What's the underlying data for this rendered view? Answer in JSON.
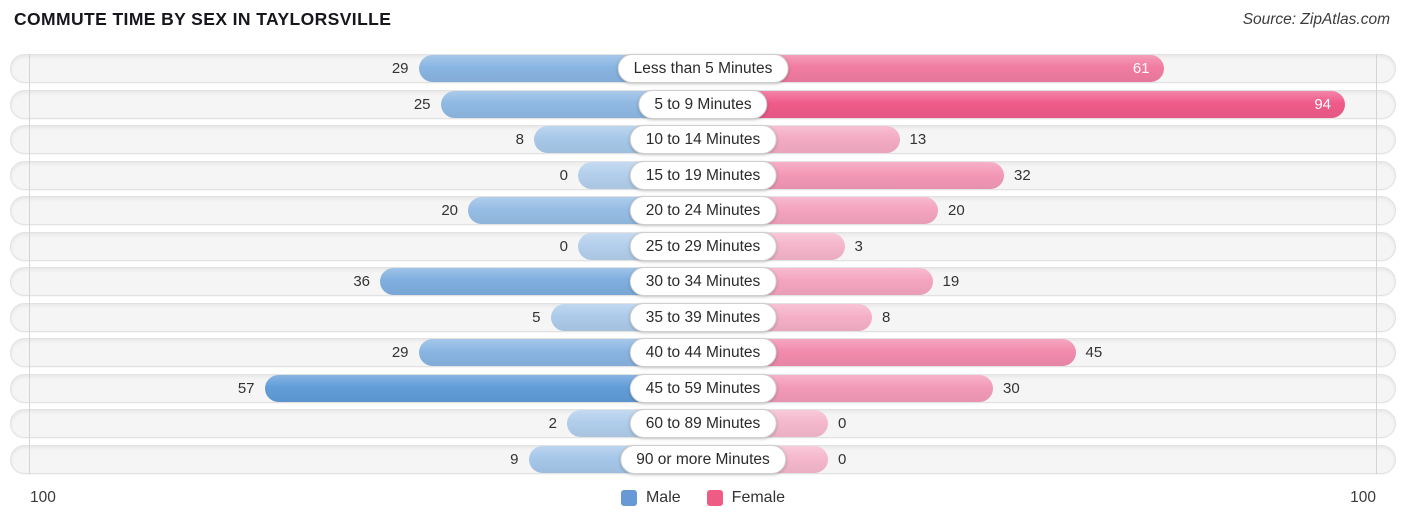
{
  "header": {
    "title": "COMMUTE TIME BY SEX IN TAYLORSVILLE",
    "source": "Source: ZipAtlas.com"
  },
  "chart_data": {
    "type": "bar",
    "variant": "diverging-horizontal",
    "title": "Commute Time by Sex in Taylorsville",
    "categories": [
      "Less than 5 Minutes",
      "5 to 9 Minutes",
      "10 to 14 Minutes",
      "15 to 19 Minutes",
      "20 to 24 Minutes",
      "25 to 29 Minutes",
      "30 to 34 Minutes",
      "35 to 39 Minutes",
      "40 to 44 Minutes",
      "45 to 59 Minutes",
      "60 to 89 Minutes",
      "90 or more Minutes"
    ],
    "series": [
      {
        "name": "Male",
        "side": "left",
        "values": [
          29,
          25,
          8,
          0,
          20,
          0,
          36,
          5,
          29,
          57,
          2,
          9
        ],
        "color_light": "#b3cfec",
        "color_dark": "#2377c9",
        "legend_color": "#6699d6",
        "label_inside": [
          false,
          false,
          false,
          false,
          false,
          false,
          false,
          false,
          false,
          false,
          false,
          false
        ]
      },
      {
        "name": "Female",
        "side": "right",
        "values": [
          61,
          94,
          13,
          32,
          20,
          3,
          19,
          8,
          45,
          30,
          0,
          0
        ],
        "color_light": "#f5b8cd",
        "color_dark": "#ef5586",
        "legend_color": "#ee5c86",
        "label_inside": [
          true,
          true,
          false,
          false,
          false,
          false,
          false,
          false,
          false,
          false,
          false,
          false
        ]
      }
    ],
    "axis_max": 100,
    "axis_labels": {
      "left": "100",
      "right": "100"
    },
    "legend_position": "bottom-center",
    "grid": "edge-gridlines",
    "value_label_color_outside": "#333333",
    "value_label_color_inside": "#ffffff"
  }
}
